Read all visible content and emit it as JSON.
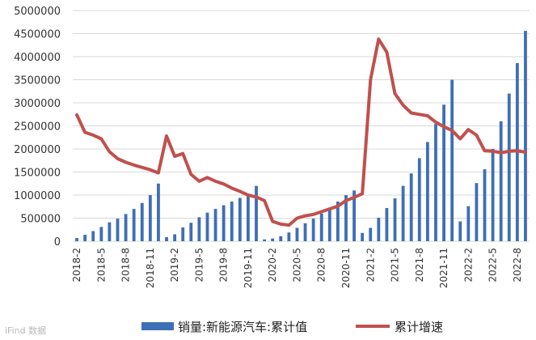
{
  "chart_data": {
    "type": "bar+line",
    "y_axis": {
      "min": 0,
      "max": 5000000,
      "step": 500000,
      "tick_labels": [
        "0",
        "500000",
        "1000000",
        "1500000",
        "2000000",
        "2500000",
        "3000000",
        "3500000",
        "4000000",
        "4500000",
        "5000000"
      ]
    },
    "x_tick_labels": [
      "2018-2",
      "2018-5",
      "2018-8",
      "2018-11",
      "2019-2",
      "2019-5",
      "2019-8",
      "2019-11",
      "2020-2",
      "2020-5",
      "2020-8",
      "2020-11",
      "2021-2",
      "2021-5",
      "2021-8",
      "2021-11",
      "2022-2",
      "2022-5",
      "2022-8"
    ],
    "x_tick_every": 3,
    "x": [
      "2018-2",
      "2018-3",
      "2018-4",
      "2018-5",
      "2018-6",
      "2018-7",
      "2018-8",
      "2018-9",
      "2018-10",
      "2018-11",
      "2018-12",
      "2019-1",
      "2019-2",
      "2019-3",
      "2019-4",
      "2019-5",
      "2019-6",
      "2019-7",
      "2019-8",
      "2019-9",
      "2019-10",
      "2019-11",
      "2019-12",
      "2020-1",
      "2020-2",
      "2020-3",
      "2020-4",
      "2020-5",
      "2020-6",
      "2020-7",
      "2020-8",
      "2020-9",
      "2020-10",
      "2020-11",
      "2020-12",
      "2021-1",
      "2021-2",
      "2021-3",
      "2021-4",
      "2021-5",
      "2021-6",
      "2021-7",
      "2021-8",
      "2021-9",
      "2021-10",
      "2021-11",
      "2021-12",
      "2022-1",
      "2022-2",
      "2022-3",
      "2022-4",
      "2022-5",
      "2022-6",
      "2022-7",
      "2022-8",
      "2022-9"
    ],
    "series": [
      {
        "name": "销量:新能源汽车:累计值",
        "kind": "bar",
        "color": "#3f6fb5",
        "values": [
          70000,
          140000,
          220000,
          310000,
          410000,
          490000,
          590000,
          700000,
          830000,
          1000000,
          1250000,
          90000,
          150000,
          300000,
          400000,
          520000,
          620000,
          700000,
          780000,
          860000,
          940000,
          1000000,
          1200000,
          40000,
          60000,
          110000,
          190000,
          290000,
          390000,
          490000,
          600000,
          730000,
          860000,
          1000000,
          1100000,
          180000,
          290000,
          510000,
          720000,
          930000,
          1200000,
          1470000,
          1800000,
          2150000,
          2540000,
          2960000,
          3500000,
          430000,
          760000,
          1260000,
          1560000,
          2000000,
          2600000,
          3200000,
          3860000,
          4560000
        ]
      },
      {
        "name": "累计增速",
        "kind": "line",
        "color": "#c0504d",
        "values": [
          2740000,
          2360000,
          2300000,
          2220000,
          1940000,
          1790000,
          1710000,
          1650000,
          1600000,
          1550000,
          1480000,
          2280000,
          1840000,
          1900000,
          1450000,
          1300000,
          1380000,
          1300000,
          1240000,
          1150000,
          1080000,
          1000000,
          960000,
          880000,
          430000,
          370000,
          350000,
          500000,
          550000,
          580000,
          640000,
          700000,
          760000,
          880000,
          950000,
          1030000,
          3500000,
          4380000,
          4100000,
          3200000,
          2950000,
          2780000,
          2750000,
          2720000,
          2580000,
          2480000,
          2400000,
          2220000,
          2420000,
          2300000,
          1960000,
          1950000,
          1920000,
          1950000,
          1960000,
          1930000
        ]
      }
    ],
    "legend": {
      "position": "bottom",
      "items": [
        {
          "label": "销量:新能源汽车:累计值",
          "color": "#3f6fb5",
          "shape": "bar"
        },
        {
          "label": "累计增速",
          "color": "#c0504d",
          "shape": "line"
        }
      ]
    },
    "grid": "horizontal",
    "watermark": "iFind 数据"
  }
}
